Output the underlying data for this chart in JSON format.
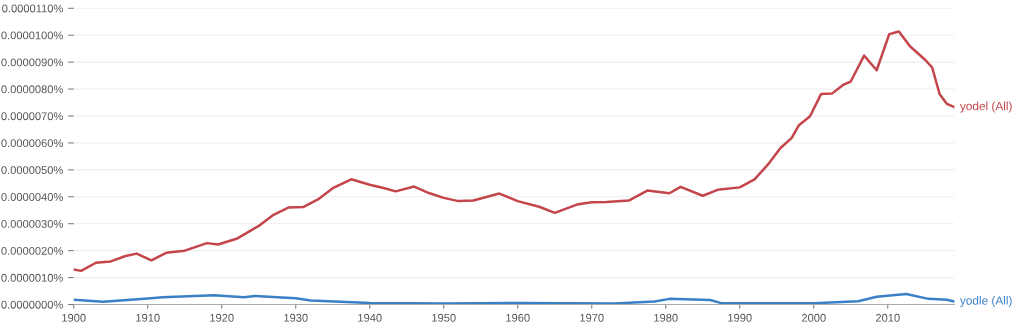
{
  "chart_data": {
    "type": "line",
    "xlim": [
      1900,
      2019
    ],
    "xticks": [
      1900,
      1910,
      1920,
      1930,
      1940,
      1950,
      1960,
      1970,
      1980,
      1990,
      2000,
      2010
    ],
    "ylim": [
      0,
      1.1e-05
    ],
    "yticks": [
      {
        "value": 0,
        "label": "0.0000000%"
      },
      {
        "value": 1e-06,
        "label": "0.0000010%"
      },
      {
        "value": 2e-06,
        "label": "0.0000020%"
      },
      {
        "value": 3e-06,
        "label": "0.0000030%"
      },
      {
        "value": 4e-06,
        "label": "0.0000040%"
      },
      {
        "value": 5e-06,
        "label": "0.0000050%"
      },
      {
        "value": 6e-06,
        "label": "0.0000060%"
      },
      {
        "value": 7e-06,
        "label": "0.0000070%"
      },
      {
        "value": 8e-06,
        "label": "0.0000080%"
      },
      {
        "value": 9e-06,
        "label": "0.0000090%"
      },
      {
        "value": 1e-05,
        "label": "0.0000100%"
      },
      {
        "value": 1.1e-05,
        "label": "0.0000110%"
      }
    ],
    "grid": "y",
    "legend": false,
    "marker": "none",
    "line_style": "solid",
    "series": [
      {
        "name": "yodel (All)",
        "color": "#c4464b",
        "x": [
          1900,
          1901,
          1903,
          1905,
          1907,
          1908.5,
          1910.5,
          1912.5,
          1915,
          1918,
          1919.5,
          1922,
          1925,
          1927,
          1929,
          1931,
          1933,
          1935,
          1937.5,
          1940,
          1942,
          1943.5,
          1946,
          1948,
          1950,
          1952,
          1954,
          1957.5,
          1960,
          1963,
          1965,
          1968,
          1970,
          1972,
          1975,
          1977.5,
          1980.5,
          1982,
          1985,
          1987,
          1990,
          1992,
          1994,
          1995.5,
          1997,
          1998,
          1999.5,
          2001,
          2002.5,
          2004,
          2005,
          2006.8,
          2008.5,
          2010.2,
          2011.5,
          2013,
          2015,
          2016,
          2017,
          2018,
          2019
        ],
        "values": [
          1.3e-06,
          1.25e-06,
          1.55e-06,
          1.6e-06,
          1.8e-06,
          1.89e-06,
          1.64e-06,
          1.92e-06,
          2e-06,
          2.28e-06,
          2.23e-06,
          2.44e-06,
          2.92e-06,
          3.33e-06,
          3.6e-06,
          3.62e-06,
          3.9e-06,
          4.32e-06,
          4.65e-06,
          4.45e-06,
          4.32e-06,
          4.2e-06,
          4.38e-06,
          4.14e-06,
          3.96e-06,
          3.84e-06,
          3.86e-06,
          4.12e-06,
          3.84e-06,
          3.62e-06,
          3.4e-06,
          3.71e-06,
          3.8e-06,
          3.81e-06,
          3.86e-06,
          4.23e-06,
          4.13e-06,
          4.37e-06,
          4.04e-06,
          4.26e-06,
          4.35e-06,
          4.65e-06,
          5.26e-06,
          5.81e-06,
          6.18e-06,
          6.66e-06,
          6.99e-06,
          7.82e-06,
          7.84e-06,
          8.16e-06,
          8.28e-06,
          9.24e-06,
          8.7e-06,
          1.004e-05,
          1.014e-05,
          9.59e-06,
          9.1e-06,
          8.8e-06,
          7.82e-06,
          7.45e-06,
          7.33e-06
        ]
      },
      {
        "name": "yodle (All)",
        "color": "#3b80c6",
        "x": [
          1900,
          1904,
          1910,
          1912,
          1919,
          1923,
          1924.5,
          1930,
          1932,
          1940,
          1950,
          1960,
          1973,
          1978.5,
          1980.5,
          1986,
          1987.5,
          2000,
          2006,
          2008.5,
          2012.5,
          2015.5,
          2018,
          2019
        ],
        "values": [
          1.8e-07,
          1e-07,
          2.2e-07,
          2.7e-07,
          3.4e-07,
          2.7e-07,
          3.2e-07,
          2.3e-07,
          1.5e-07,
          6e-08,
          4e-08,
          6e-08,
          4e-08,
          1.1e-07,
          2.1e-07,
          1.7e-07,
          5e-08,
          5e-08,
          1.2e-07,
          2.9e-07,
          3.9e-07,
          2.1e-07,
          1.8e-07,
          1.1e-07
        ]
      }
    ]
  }
}
